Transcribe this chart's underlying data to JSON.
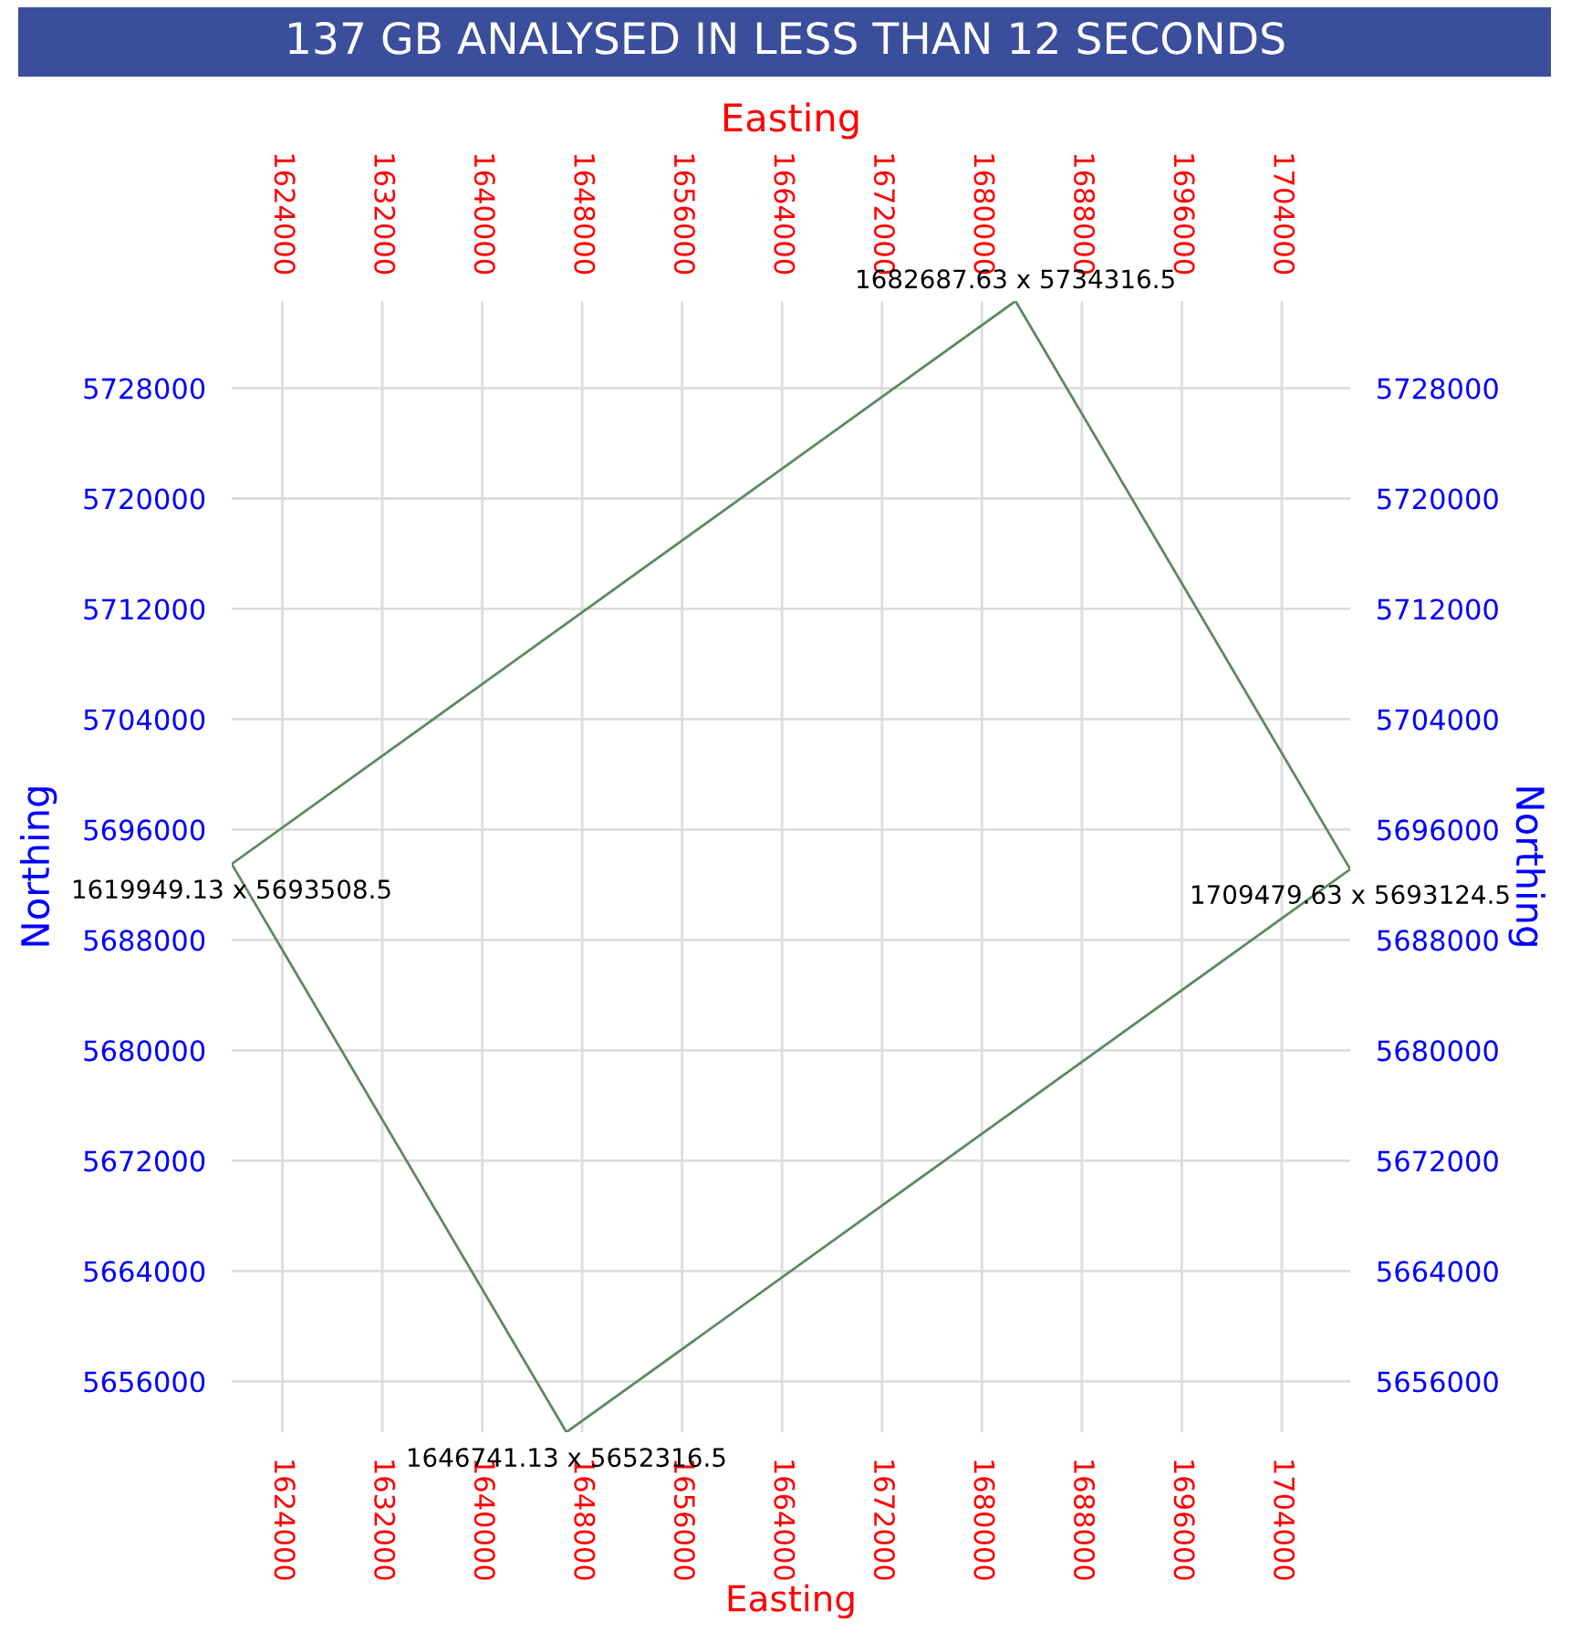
{
  "chart_data": {
    "type": "line",
    "title": "137 GB ANALYSED IN LESS THAN 12 SECONDS",
    "xlabel": "Easting",
    "x2label": "Easting",
    "ylabel": "Northing",
    "y2label": "Northing",
    "series": [
      {
        "color": "#5b8a5e",
        "x": [
          1619949.13,
          1682687.63,
          1709479.63
        ],
        "values": [
          5693508.5,
          5734316.5,
          5693124.5
        ]
      },
      {
        "color": "#5b8a5e",
        "x": [
          1619949.13,
          1646741.13,
          1709479.63
        ],
        "values": [
          5693508.5,
          5652316.5,
          5693124.5
        ]
      }
    ],
    "xlim": [
      1619949.13,
      1709479.63
    ],
    "x2lim": [
      1619949.13,
      1709479.63
    ],
    "ylim": [
      5652316.5,
      5734316.5
    ],
    "y2lim": [
      5652316.5,
      5734316.5
    ],
    "xticks": [
      1624000,
      1632000,
      1640000,
      1648000,
      1656000,
      1664000,
      1672000,
      1680000,
      1688000,
      1696000,
      1704000
    ],
    "x2ticks": [
      1624000,
      1632000,
      1640000,
      1648000,
      1656000,
      1664000,
      1672000,
      1680000,
      1688000,
      1696000,
      1704000
    ],
    "yticks": [
      5656000,
      5664000,
      5672000,
      5680000,
      5688000,
      5696000,
      5704000,
      5712000,
      5720000,
      5728000
    ],
    "y2ticks": [
      5656000,
      5664000,
      5672000,
      5680000,
      5688000,
      5696000,
      5704000,
      5712000,
      5720000,
      5728000
    ],
    "annotations": [
      {
        "text": "1619949.13 x 5693508.5",
        "x": 1619949.13,
        "y": 5693508.5
      },
      {
        "text": "1682687.63 x 5734316.5",
        "x": 1682687.63,
        "y": 5734316.5
      },
      {
        "text": "1709479.63 x 5693124.5",
        "x": 1709479.63,
        "y": 5693124.5
      },
      {
        "text": "1646741.13 x 5652316.5",
        "x": 1646741.13,
        "y": 5652316.5
      }
    ],
    "grid": true,
    "marker": "none",
    "line_style": "solid",
    "legend": false
  }
}
